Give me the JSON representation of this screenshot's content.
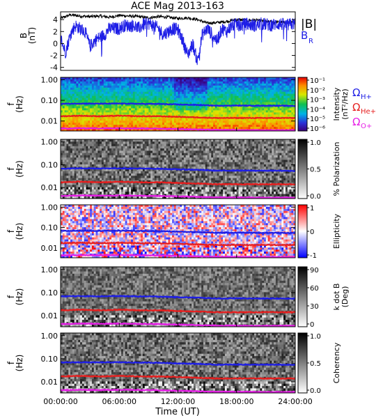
{
  "figure": {
    "title": "ACE Mag 2013-163",
    "xlabel": "Time (UT)",
    "xticks": [
      "00:00:00",
      "06:00:00",
      "12:00:00",
      "18:00:00",
      "24:00:00"
    ],
    "legend_B": {
      "total": "|B|",
      "radial": "B",
      "radial_sub": "R"
    },
    "legend_cyclotron": [
      {
        "sym": "Ω",
        "sub": "H+",
        "color": "#1e1ee6"
      },
      {
        "sym": "Ω",
        "sub": "He+",
        "color": "#e61e1e"
      },
      {
        "sym": "Ω",
        "sub": "O+",
        "color": "#e61ee6"
      }
    ],
    "colors": {
      "total": "#000000",
      "radial": "#1e1ee6",
      "H": "#1e1ee6",
      "He": "#e61e1e",
      "O": "#e61ee6"
    }
  },
  "chart_data": [
    {
      "type": "line",
      "panel": "magnetic-field",
      "ylabel": "B",
      "yunit": "(nT)",
      "yticks": [
        "4",
        "2",
        "0",
        "-2",
        "-4"
      ],
      "ylim": [
        -4.5,
        5.3
      ],
      "xlim": [
        0,
        24
      ],
      "x_unit": "hours UT",
      "series": [
        {
          "name": "|B|",
          "x": [
            0,
            1,
            2,
            3,
            4,
            5,
            6,
            7,
            8,
            9,
            10,
            11,
            12,
            13,
            14,
            15,
            16,
            17,
            18,
            19,
            20,
            21,
            22,
            23,
            24
          ],
          "values": [
            4.2,
            4.8,
            4.6,
            4.5,
            4.6,
            4.4,
            4.7,
            4.6,
            4.5,
            4.3,
            4.5,
            4.4,
            4.2,
            4.3,
            4.0,
            3.4,
            3.5,
            3.7,
            4.0,
            3.9,
            3.9,
            3.7,
            3.6,
            3.5,
            3.5
          ]
        },
        {
          "name": "B_R",
          "x": [
            0,
            0.5,
            1,
            1.5,
            2,
            2.5,
            3,
            3.5,
            4,
            4.5,
            5,
            5.5,
            6,
            6.5,
            7,
            7.5,
            8,
            8.5,
            9,
            9.5,
            10,
            10.5,
            11,
            11.5,
            12,
            12.5,
            13,
            13.5,
            14,
            14.5,
            15,
            15.5,
            16,
            16.5,
            17,
            17.5,
            18,
            18.5,
            19,
            19.5,
            20,
            20.5,
            21,
            21.5,
            22,
            22.5,
            23,
            23.5,
            24
          ],
          "values": [
            1.0,
            -1.5,
            1.5,
            3.0,
            2.5,
            2.0,
            -0.5,
            0.5,
            1.0,
            1.5,
            2.5,
            2.5,
            2.5,
            3.0,
            3.0,
            3.0,
            2.5,
            3.2,
            3.4,
            3.0,
            2.5,
            1.5,
            2.0,
            2.5,
            2.3,
            0.5,
            -2.0,
            0.0,
            -3.0,
            1.5,
            2.5,
            1.5,
            0.5,
            2.5,
            2.0,
            3.0,
            3.2,
            3.0,
            3.3,
            3.1,
            3.0,
            3.3,
            3.2,
            3.1,
            3.2,
            3.3,
            3.0,
            3.2,
            3.3
          ]
        }
      ]
    },
    {
      "type": "heatmap",
      "panel": "intensity",
      "ylabel": "f",
      "yunit": "(Hz)",
      "ylog": true,
      "ylim": [
        0.0033,
        1.3
      ],
      "yticks": [
        "1.00",
        "0.10",
        "0.01"
      ],
      "colorbar": {
        "label": "Intensity",
        "unit": "(nT²/Hz)",
        "ticks": [
          "10⁻¹",
          "10⁻²",
          "10⁻³",
          "10⁻⁴",
          "10⁻⁵",
          "10⁻⁶"
        ],
        "scale": "rainbow"
      }
    },
    {
      "type": "heatmap",
      "panel": "polarization",
      "ylabel": "f",
      "yunit": "(Hz)",
      "ylog": true,
      "ylim": [
        0.0033,
        1.3
      ],
      "yticks": [
        "1.00",
        "0.10",
        "0.01"
      ],
      "colorbar": {
        "label": "% Polarization",
        "ticks": [
          "1.0",
          "0.5",
          "0.0"
        ],
        "scale": "gray"
      }
    },
    {
      "type": "heatmap",
      "panel": "ellipticity",
      "ylabel": "f",
      "yunit": "(Hz)",
      "ylog": true,
      "ylim": [
        0.0033,
        1.3
      ],
      "yticks": [
        "1.00",
        "0.10",
        "0.01"
      ],
      "colorbar": {
        "label": "Ellipticity",
        "ticks": [
          "1",
          "0",
          "-1"
        ],
        "scale": "bwr"
      }
    },
    {
      "type": "heatmap",
      "panel": "wave-normal-angle",
      "ylabel": "f",
      "yunit": "(Hz)",
      "ylog": true,
      "ylim": [
        0.0033,
        1.3
      ],
      "yticks": [
        "1.00",
        "0.10",
        "0.01"
      ],
      "colorbar": {
        "label": "k dot B",
        "unit": "(Deg)",
        "ticks": [
          "90",
          "60",
          "30",
          "0"
        ],
        "scale": "gray"
      }
    },
    {
      "type": "heatmap",
      "panel": "coherency",
      "ylabel": "f",
      "yunit": "(Hz)",
      "ylog": true,
      "ylim": [
        0.0033,
        1.3
      ],
      "yticks": [
        "1.00",
        "0.10",
        "0.01"
      ],
      "colorbar": {
        "label": "Coherency",
        "ticks": [
          "1.0",
          "0.5",
          "0.0"
        ],
        "scale": "gray"
      }
    }
  ],
  "cyclotron_frequencies": {
    "x": [
      0,
      2,
      4,
      6,
      8,
      10,
      12,
      14,
      16,
      18,
      20,
      22,
      24
    ],
    "H+": [
      0.068,
      0.07,
      0.069,
      0.07,
      0.068,
      0.067,
      0.063,
      0.06,
      0.055,
      0.056,
      0.055,
      0.055,
      0.054
    ],
    "He+": [
      0.017,
      0.018,
      0.017,
      0.018,
      0.017,
      0.017,
      0.016,
      0.015,
      0.014,
      0.014,
      0.014,
      0.014,
      0.014
    ],
    "O+": [
      0.0043,
      0.0045,
      0.0044,
      0.0045,
      0.0044,
      0.0043,
      0.0041,
      0.0039,
      0.0037,
      0.0037,
      0.0036,
      0.0036,
      0.0036
    ]
  }
}
